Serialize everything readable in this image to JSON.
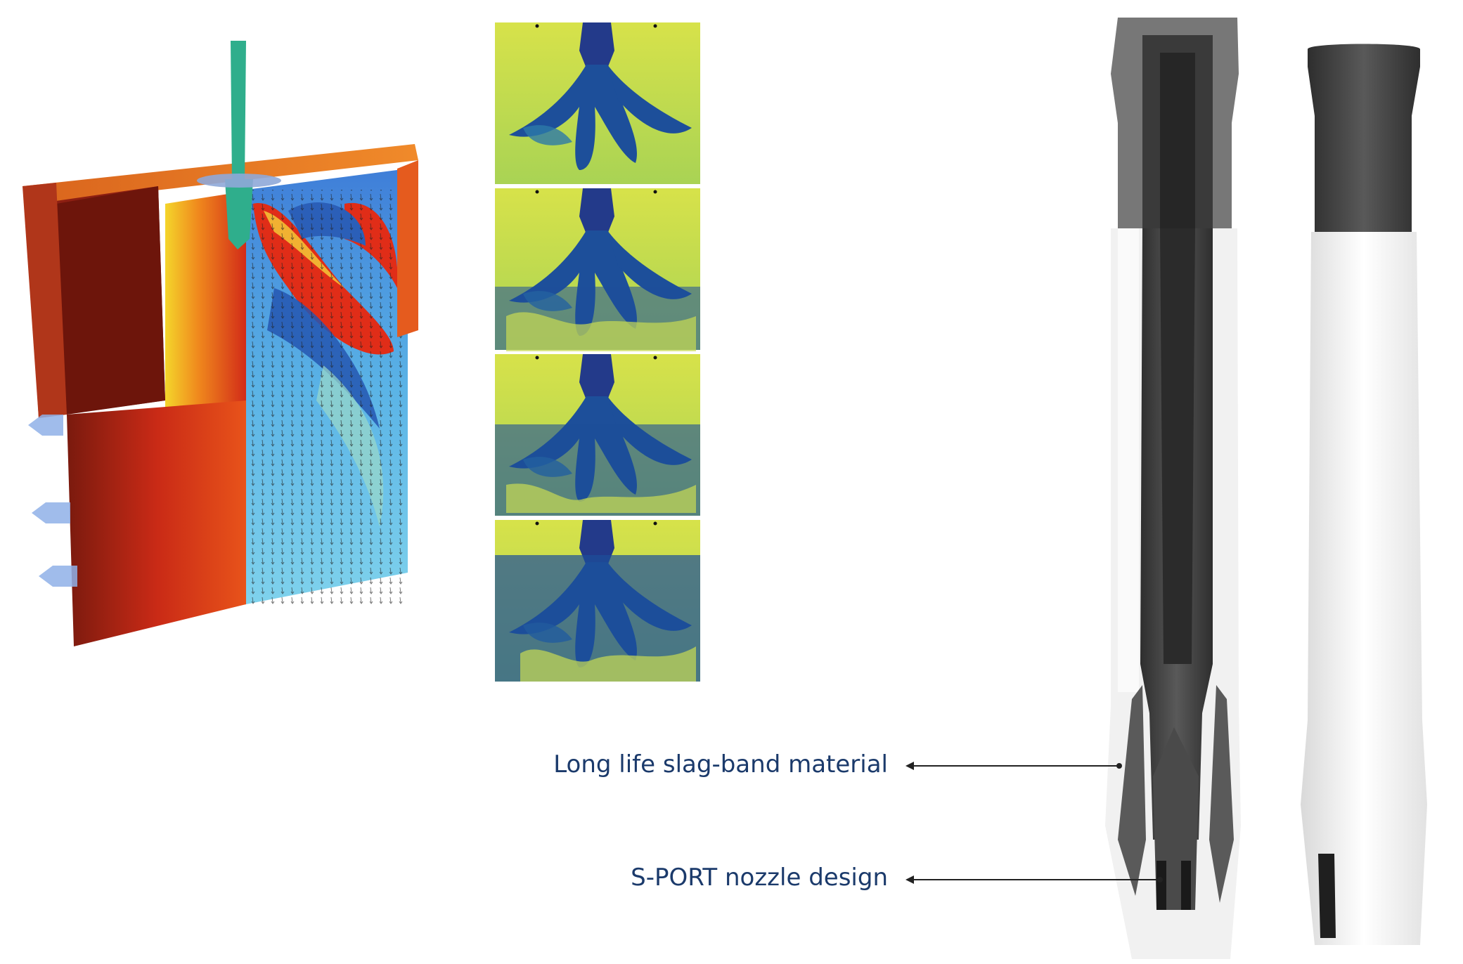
{
  "callouts": {
    "slag_band": "Long life slag-band material",
    "s_port": "S-PORT nozzle design"
  },
  "colors": {
    "label_text": "#1b3a6b",
    "green_nozzle": "#2fae8c",
    "cfd_red": "#d82d1a",
    "cfd_blue": "#1b4f9c",
    "panel_yellow": "#cfe04a",
    "refractory_dark": "#3f3f3f",
    "sleeve_white": "#f2f2f2"
  },
  "images": {
    "cfd_mould": "3d-cfd-mould-flow-render",
    "water_model_sequence": "four-stage-jet-flow-panels",
    "nozzle_section": "submerged-entry-nozzle-cutaway",
    "nozzle_exterior": "submerged-entry-nozzle-exterior"
  }
}
